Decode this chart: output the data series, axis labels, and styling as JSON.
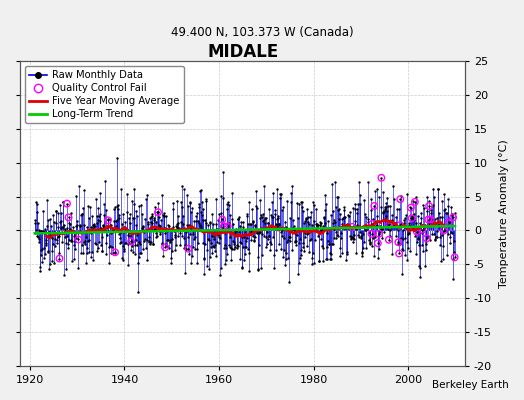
{
  "title": "MIDALE",
  "subtitle": "49.400 N, 103.373 W (Canada)",
  "ylabel": "Temperature Anomaly (°C)",
  "credit": "Berkeley Earth",
  "xlim": [
    1918,
    2012
  ],
  "ylim": [
    -20,
    25
  ],
  "yticks": [
    -20,
    -15,
    -10,
    -5,
    0,
    5,
    10,
    15,
    20,
    25
  ],
  "xticks": [
    1920,
    1940,
    1960,
    1980,
    2000
  ],
  "bg_color": "#f0f0f0",
  "plot_bg_color": "#ffffff",
  "raw_line_color": "#0000dd",
  "raw_marker_color": "#000000",
  "qc_color": "#ff00ff",
  "moving_avg_color": "#dd0000",
  "trend_color": "#00cc00",
  "seed": 42,
  "noise_std": 2.8,
  "n_qc": 40
}
